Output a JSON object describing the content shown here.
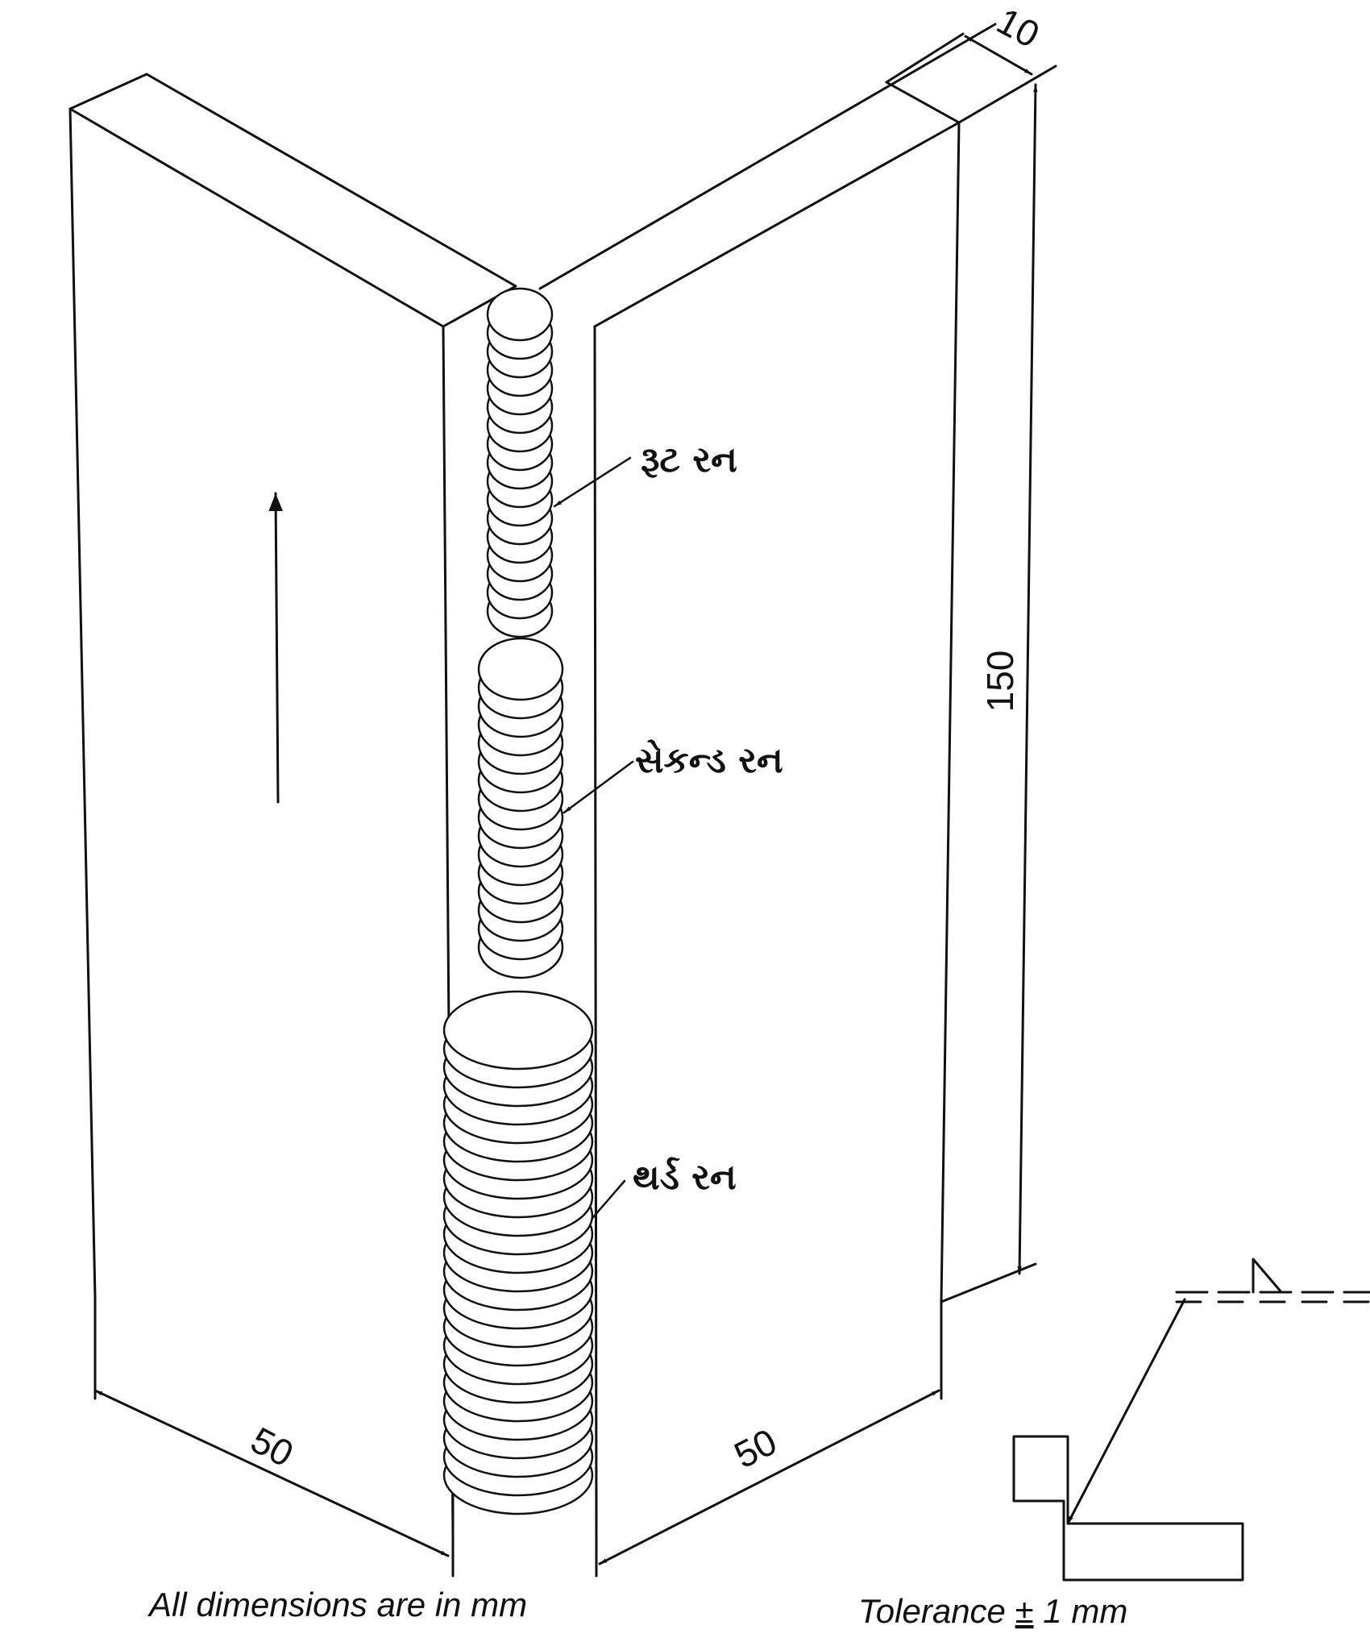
{
  "dimensions": {
    "thickness": "10",
    "height": "150",
    "left_width": "50",
    "right_width": "50"
  },
  "labels": {
    "root_run": "રૂટ રન",
    "second_run": "સેકન્ડ રન",
    "third_run": "થર્ડ રન"
  },
  "notes": {
    "units": "All dimensions are in mm",
    "tolerance_prefix": "Tolerance ",
    "tolerance_sign": "±",
    "tolerance_value": " 1 mm"
  },
  "colors": {
    "line": "#111111",
    "background": "#ffffff"
  }
}
